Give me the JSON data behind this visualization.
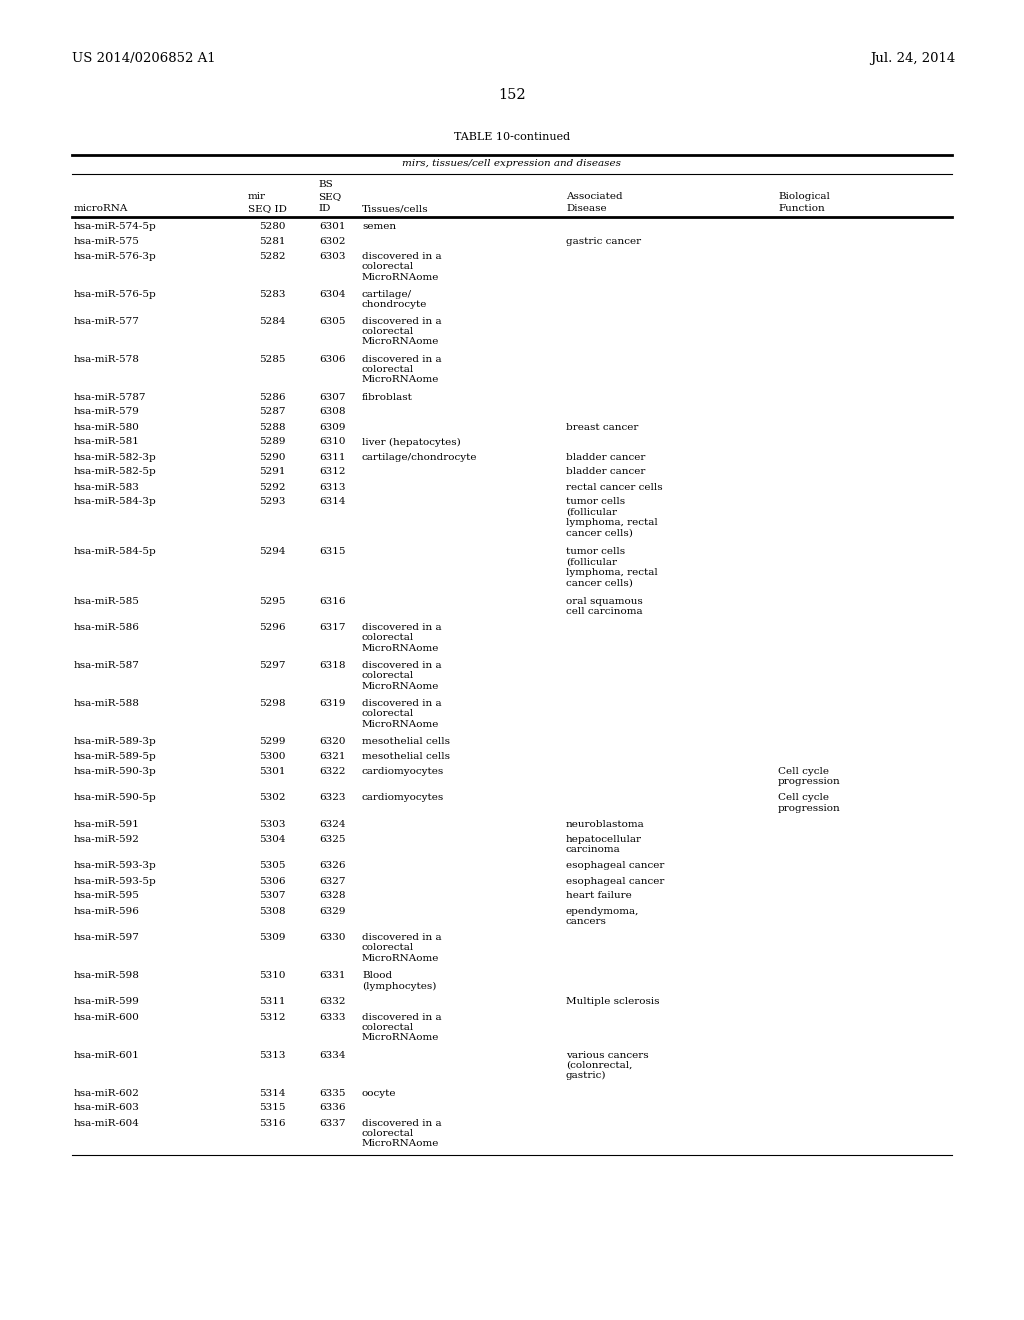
{
  "header_left": "US 2014/0206852 A1",
  "header_right": "Jul. 24, 2014",
  "page_number": "152",
  "table_title": "TABLE 10-continued",
  "table_subtitle": "mirs, tissues/cell expression and diseases",
  "bg_color": "#ffffff",
  "text_color": "#000000",
  "font_size": 7.5,
  "header_font_size": 9.5,
  "rows": [
    [
      "hsa-miR-574-5p",
      "5280",
      "6301",
      "semen",
      "",
      ""
    ],
    [
      "hsa-miR-575",
      "5281",
      "6302",
      "",
      "gastric cancer",
      ""
    ],
    [
      "hsa-miR-576-3p",
      "5282",
      "6303",
      "discovered in a\ncolorectal\nMicroRNAome",
      "",
      ""
    ],
    [
      "hsa-miR-576-5p",
      "5283",
      "6304",
      "cartilage/\nchondrocyte",
      "",
      ""
    ],
    [
      "hsa-miR-577",
      "5284",
      "6305",
      "discovered in a\ncolorectal\nMicroRNAome",
      "",
      ""
    ],
    [
      "hsa-miR-578",
      "5285",
      "6306",
      "discovered in a\ncolorectal\nMicroRNAome",
      "",
      ""
    ],
    [
      "hsa-miR-5787",
      "5286",
      "6307",
      "fibroblast",
      "",
      ""
    ],
    [
      "hsa-miR-579",
      "5287",
      "6308",
      "",
      "",
      ""
    ],
    [
      "hsa-miR-580",
      "5288",
      "6309",
      "",
      "breast cancer",
      ""
    ],
    [
      "hsa-miR-581",
      "5289",
      "6310",
      "liver (hepatocytes)",
      "",
      ""
    ],
    [
      "hsa-miR-582-3p",
      "5290",
      "6311",
      "cartilage/chondrocyte",
      "bladder cancer",
      ""
    ],
    [
      "hsa-miR-582-5p",
      "5291",
      "6312",
      "",
      "bladder cancer",
      ""
    ],
    [
      "hsa-miR-583",
      "5292",
      "6313",
      "",
      "rectal cancer cells",
      ""
    ],
    [
      "hsa-miR-584-3p",
      "5293",
      "6314",
      "",
      "tumor cells\n(follicular\nlymphoma, rectal\ncancer cells)",
      ""
    ],
    [
      "hsa-miR-584-5p",
      "5294",
      "6315",
      "",
      "tumor cells\n(follicular\nlymphoma, rectal\ncancer cells)",
      ""
    ],
    [
      "hsa-miR-585",
      "5295",
      "6316",
      "",
      "oral squamous\ncell carcinoma",
      ""
    ],
    [
      "hsa-miR-586",
      "5296",
      "6317",
      "discovered in a\ncolorectal\nMicroRNAome",
      "",
      ""
    ],
    [
      "hsa-miR-587",
      "5297",
      "6318",
      "discovered in a\ncolorectal\nMicroRNAome",
      "",
      ""
    ],
    [
      "hsa-miR-588",
      "5298",
      "6319",
      "discovered in a\ncolorectal\nMicroRNAome",
      "",
      ""
    ],
    [
      "hsa-miR-589-3p",
      "5299",
      "6320",
      "mesothelial cells",
      "",
      ""
    ],
    [
      "hsa-miR-589-5p",
      "5300",
      "6321",
      "mesothelial cells",
      "",
      ""
    ],
    [
      "hsa-miR-590-3p",
      "5301",
      "6322",
      "cardiomyocytes",
      "",
      "Cell cycle\nprogression"
    ],
    [
      "hsa-miR-590-5p",
      "5302",
      "6323",
      "cardiomyocytes",
      "",
      "Cell cycle\nprogression"
    ],
    [
      "hsa-miR-591",
      "5303",
      "6324",
      "",
      "neuroblastoma",
      ""
    ],
    [
      "hsa-miR-592",
      "5304",
      "6325",
      "",
      "hepatocellular\ncarcinoma",
      ""
    ],
    [
      "hsa-miR-593-3p",
      "5305",
      "6326",
      "",
      "esophageal cancer",
      ""
    ],
    [
      "hsa-miR-593-5p",
      "5306",
      "6327",
      "",
      "esophageal cancer",
      ""
    ],
    [
      "hsa-miR-595",
      "5307",
      "6328",
      "",
      "heart failure",
      ""
    ],
    [
      "hsa-miR-596",
      "5308",
      "6329",
      "",
      "ependymoma,\ncancers",
      ""
    ],
    [
      "hsa-miR-597",
      "5309",
      "6330",
      "discovered in a\ncolorectal\nMicroRNAome",
      "",
      ""
    ],
    [
      "hsa-miR-598",
      "5310",
      "6331",
      "Blood\n(lymphocytes)",
      "",
      ""
    ],
    [
      "hsa-miR-599",
      "5311",
      "6332",
      "",
      "Multiple sclerosis",
      ""
    ],
    [
      "hsa-miR-600",
      "5312",
      "6333",
      "discovered in a\ncolorectal\nMicroRNAome",
      "",
      ""
    ],
    [
      "hsa-miR-601",
      "5313",
      "6334",
      "",
      "various cancers\n(colonrectal,\ngastric)",
      ""
    ],
    [
      "hsa-miR-602",
      "5314",
      "6335",
      "oocyte",
      "",
      ""
    ],
    [
      "hsa-miR-603",
      "5315",
      "6336",
      "",
      "",
      ""
    ],
    [
      "hsa-miR-604",
      "5316",
      "6337",
      "discovered in a\ncolorectal\nMicroRNAome",
      "",
      ""
    ]
  ]
}
